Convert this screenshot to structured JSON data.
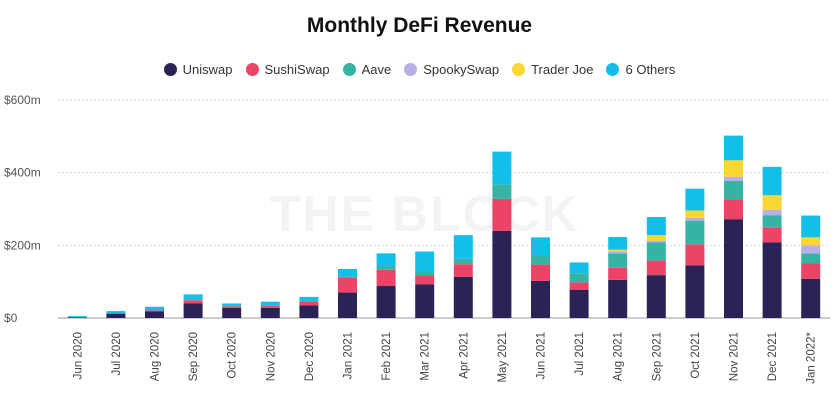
{
  "watermark": "THE BLOCK",
  "chart_data": {
    "type": "bar",
    "stacked": true,
    "title": "Monthly DeFi Revenue",
    "xlabel": "",
    "ylabel": "",
    "ylim": [
      0,
      600
    ],
    "yticks": [
      0,
      200,
      400,
      600
    ],
    "ytick_labels": [
      "$0",
      "$200m",
      "$400m",
      "$600m"
    ],
    "grid": true,
    "legend_position": "top-center",
    "categories": [
      "Jun 2020",
      "Jul 2020",
      "Aug 2020",
      "Sep 2020",
      "Oct 2020",
      "Nov 2020",
      "Dec 2020",
      "Jan 2021",
      "Feb 2021",
      "Mar 2021",
      "Apr 2021",
      "May 2021",
      "Jun 2021",
      "Jul 2021",
      "Aug 2021",
      "Sep 2021",
      "Oct 2021",
      "Nov 2021",
      "Dec 2021",
      "Jan 2022*"
    ],
    "series": [
      {
        "name": "Uniswap",
        "color": "#2b2356",
        "values": [
          2,
          12,
          18,
          40,
          28,
          28,
          35,
          70,
          88,
          93,
          113,
          240,
          102,
          78,
          105,
          118,
          145,
          272,
          208,
          108
        ]
      },
      {
        "name": "SushiSwap",
        "color": "#ec4466",
        "values": [
          0,
          0,
          3,
          9,
          4,
          5,
          10,
          40,
          45,
          25,
          35,
          88,
          45,
          20,
          33,
          40,
          58,
          55,
          40,
          42
        ]
      },
      {
        "name": "Aave",
        "color": "#36b3a5",
        "values": [
          0,
          0,
          0,
          3,
          2,
          2,
          3,
          5,
          10,
          10,
          15,
          40,
          25,
          25,
          40,
          50,
          65,
          50,
          35,
          28
        ]
      },
      {
        "name": "SpookySwap",
        "color": "#b9aee6",
        "values": [
          0,
          0,
          0,
          0,
          0,
          0,
          0,
          0,
          0,
          0,
          0,
          0,
          0,
          0,
          5,
          5,
          8,
          12,
          15,
          22
        ]
      },
      {
        "name": "Trader Joe",
        "color": "#f8d634",
        "values": [
          0,
          0,
          0,
          0,
          0,
          0,
          0,
          0,
          0,
          0,
          0,
          0,
          0,
          0,
          5,
          15,
          20,
          45,
          40,
          22
        ]
      },
      {
        "name": "6 Others",
        "color": "#13bfe8",
        "values": [
          3,
          7,
          10,
          13,
          6,
          10,
          10,
          20,
          35,
          55,
          65,
          90,
          50,
          30,
          35,
          50,
          60,
          68,
          78,
          60
        ]
      }
    ]
  }
}
